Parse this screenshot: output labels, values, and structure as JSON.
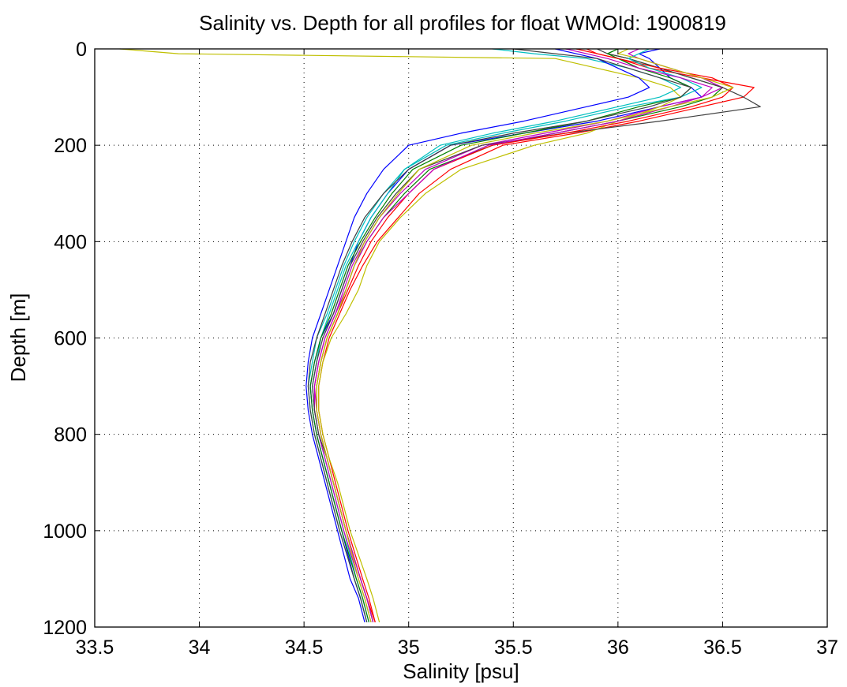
{
  "chart_data": {
    "type": "line",
    "title": "Salinity vs. Depth for all profiles for float WMOId: 1900819",
    "xlabel": "Salinity [psu]",
    "ylabel": "Depth [m]",
    "xlim": [
      33.5,
      37
    ],
    "ylim": [
      0,
      1200
    ],
    "y_reversed": true,
    "x_ticks": [
      "33.5",
      "34",
      "34.5",
      "35",
      "35.5",
      "36",
      "36.5",
      "37"
    ],
    "y_ticks": [
      "0",
      "200",
      "400",
      "600",
      "800",
      "1000",
      "1200"
    ],
    "grid": true,
    "colors": [
      "#0000ff",
      "#008000",
      "#ff0000",
      "#00bfbf",
      "#bf00bf",
      "#bfbf00",
      "#404040"
    ],
    "depth_levels": [
      0,
      10,
      20,
      40,
      60,
      80,
      100,
      120,
      150,
      175,
      200,
      250,
      300,
      350,
      400,
      450,
      500,
      550,
      600,
      650,
      700,
      750,
      800,
      850,
      900,
      1000,
      1100,
      1140,
      1190
    ],
    "series": [
      {
        "values": [
          36.2,
          36.1,
          36.15,
          36.2,
          36.25,
          36.35,
          36.4,
          36.2,
          35.9,
          35.55,
          35.2,
          35.0,
          34.9,
          34.82,
          34.76,
          34.72,
          34.68,
          34.64,
          34.58,
          34.55,
          34.53,
          34.54,
          34.56,
          34.59,
          34.62,
          34.68,
          34.74,
          34.77,
          34.8
        ]
      },
      {
        "values": [
          36.0,
          35.95,
          36.05,
          36.2,
          36.35,
          36.5,
          36.45,
          36.3,
          36.0,
          35.7,
          35.4,
          35.1,
          34.98,
          34.88,
          34.8,
          34.74,
          34.7,
          34.66,
          34.61,
          34.58,
          34.56,
          34.56,
          34.58,
          34.61,
          34.64,
          34.7,
          34.77,
          34.8,
          34.83
        ]
      },
      {
        "values": [
          35.8,
          35.9,
          36.0,
          36.15,
          36.4,
          36.65,
          36.6,
          36.4,
          36.1,
          35.8,
          35.45,
          35.2,
          35.05,
          34.95,
          34.85,
          34.78,
          34.72,
          34.67,
          34.62,
          34.59,
          34.57,
          34.57,
          34.59,
          34.62,
          34.65,
          34.71,
          34.78,
          34.81,
          34.84
        ]
      },
      {
        "values": [
          35.4,
          35.6,
          35.85,
          36.05,
          36.2,
          36.3,
          36.2,
          36.0,
          35.7,
          35.4,
          35.15,
          34.98,
          34.9,
          34.82,
          34.76,
          34.7,
          34.66,
          34.62,
          34.58,
          34.56,
          34.54,
          34.55,
          34.57,
          34.6,
          34.63,
          34.69,
          34.75,
          34.78,
          34.81
        ]
      },
      {
        "values": [
          36.1,
          36.05,
          36.1,
          36.25,
          36.4,
          36.5,
          36.4,
          36.2,
          35.95,
          35.65,
          35.35,
          35.08,
          34.96,
          34.86,
          34.79,
          34.73,
          34.69,
          34.65,
          34.6,
          34.57,
          34.55,
          34.55,
          34.57,
          34.6,
          34.63,
          34.69,
          34.76,
          34.79,
          34.82
        ]
      },
      {
        "values": [
          33.62,
          33.9,
          35.7,
          35.9,
          36.1,
          36.25,
          36.3,
          36.2,
          36.0,
          35.85,
          35.6,
          35.25,
          35.08,
          34.96,
          34.86,
          34.8,
          34.76,
          34.7,
          34.63,
          34.59,
          34.57,
          34.57,
          34.59,
          34.62,
          34.66,
          34.72,
          34.8,
          34.83,
          34.86
        ]
      },
      {
        "values": [
          35.9,
          35.95,
          36.05,
          36.2,
          36.35,
          36.5,
          36.6,
          36.68,
          36.2,
          35.75,
          35.35,
          35.05,
          34.94,
          34.85,
          34.78,
          34.72,
          34.68,
          34.64,
          34.59,
          34.56,
          34.54,
          34.55,
          34.57,
          34.61,
          34.64,
          34.7,
          34.77,
          34.8,
          34.83
        ]
      },
      {
        "values": [
          35.7,
          35.8,
          35.9,
          36.0,
          36.1,
          36.15,
          36.05,
          35.85,
          35.55,
          35.25,
          35.0,
          34.88,
          34.8,
          34.74,
          34.7,
          34.66,
          34.62,
          34.58,
          34.54,
          34.52,
          34.51,
          34.52,
          34.54,
          34.57,
          34.6,
          34.66,
          34.72,
          34.76,
          34.79
        ]
      },
      {
        "values": [
          36.0,
          35.95,
          36.0,
          36.1,
          36.25,
          36.35,
          36.3,
          36.1,
          35.85,
          35.55,
          35.25,
          35.02,
          34.92,
          34.84,
          34.77,
          34.71,
          34.67,
          34.63,
          34.58,
          34.55,
          34.53,
          34.54,
          34.56,
          34.59,
          34.62,
          34.68,
          34.75,
          34.78,
          34.81
        ]
      },
      {
        "values": [
          35.85,
          35.9,
          36.0,
          36.2,
          36.45,
          36.55,
          36.5,
          36.35,
          36.05,
          35.75,
          35.4,
          35.12,
          35.0,
          34.9,
          34.82,
          34.76,
          34.71,
          34.66,
          34.61,
          34.58,
          34.56,
          34.56,
          34.58,
          34.61,
          34.64,
          34.7,
          34.77,
          34.8,
          34.84
        ]
      },
      {
        "values": [
          36.15,
          36.1,
          36.05,
          36.15,
          36.3,
          36.4,
          36.3,
          36.05,
          35.75,
          35.45,
          35.18,
          34.98,
          34.88,
          34.8,
          34.74,
          34.69,
          34.65,
          34.61,
          34.56,
          34.54,
          34.52,
          34.53,
          34.55,
          34.58,
          34.61,
          34.67,
          34.74,
          34.77,
          34.8
        ]
      },
      {
        "values": [
          35.75,
          35.85,
          35.95,
          36.1,
          36.3,
          36.45,
          36.4,
          36.25,
          36.0,
          35.7,
          35.38,
          35.12,
          35.0,
          34.88,
          34.8,
          34.74,
          34.7,
          34.65,
          34.6,
          34.57,
          34.55,
          34.56,
          34.58,
          34.61,
          34.64,
          34.7,
          34.77,
          34.8,
          34.83
        ]
      },
      {
        "values": [
          36.05,
          36.0,
          36.1,
          36.25,
          36.4,
          36.55,
          36.45,
          36.25,
          35.95,
          35.6,
          35.3,
          35.05,
          34.95,
          34.86,
          34.79,
          34.74,
          34.7,
          34.66,
          34.61,
          34.58,
          34.56,
          34.56,
          34.58,
          34.61,
          34.64,
          34.7,
          34.76,
          34.79,
          34.82
        ]
      },
      {
        "values": [
          35.5,
          35.7,
          35.9,
          36.05,
          36.2,
          36.35,
          36.3,
          36.15,
          35.85,
          35.5,
          35.2,
          35.0,
          34.88,
          34.79,
          34.73,
          34.68,
          34.64,
          34.6,
          34.56,
          34.53,
          34.52,
          34.53,
          34.55,
          34.58,
          34.61,
          34.67,
          34.74,
          34.77,
          34.8
        ]
      }
    ]
  }
}
